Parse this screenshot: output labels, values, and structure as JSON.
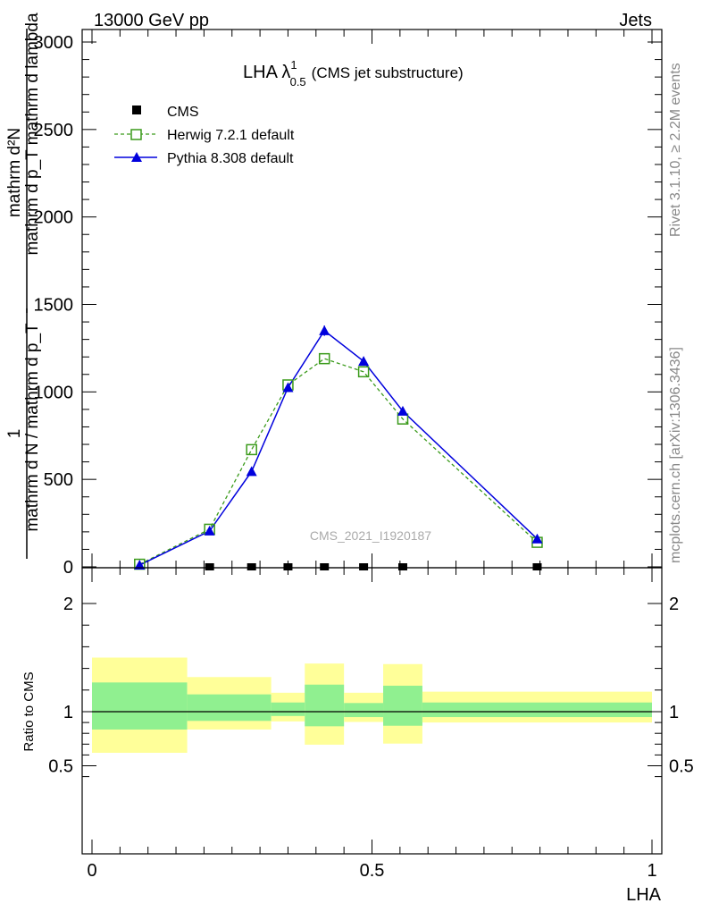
{
  "header": {
    "left": "13000 GeV pp",
    "right": "Jets"
  },
  "side_labels": {
    "rivet": "Rivet 3.1.10, ≥ 2.2M events",
    "mcplots": "mcplots.cern.ch [arXiv:1306.3436]"
  },
  "watermark": "CMS_2021_I1920187",
  "chart_data": [
    {
      "type": "line",
      "title_main": "LHA λ",
      "title_sup": "1",
      "title_sub": "0.5",
      "title_rest": "(CMS jet substructure)",
      "ylabel_top": "mathrm d²N",
      "ylabel_top2": "mathrm d p_T mathrm d lambda",
      "ylabel_bottom": "mathrm d N / mathrm d p_T",
      "ylabel_one": "1",
      "xlim": [
        0,
        1
      ],
      "ylim": [
        0,
        3000
      ],
      "yticks": [
        0,
        500,
        1000,
        1500,
        2000,
        2500,
        3000
      ],
      "ytick_labels": [
        "0",
        "500",
        "1000",
        "1500",
        "2000",
        "2500",
        "3000"
      ],
      "legend_position": "top-left",
      "series": [
        {
          "name": "CMS",
          "color": "#000000",
          "marker": "square-filled",
          "x": [
            0.21,
            0.285,
            0.35,
            0.415,
            0.485,
            0.555,
            0.795
          ],
          "y": [
            0,
            0,
            0,
            0,
            0,
            0,
            0
          ]
        },
        {
          "name": "Herwig 7.2.1 default",
          "color": "#3a9a1a",
          "marker": "square-open",
          "dashed": true,
          "x": [
            0.085,
            0.21,
            0.285,
            0.35,
            0.415,
            0.485,
            0.555,
            0.795
          ],
          "y": [
            15,
            215,
            670,
            1040,
            1190,
            1115,
            845,
            140
          ]
        },
        {
          "name": "Pythia 8.308 default",
          "color": "#0000dd",
          "marker": "triangle-filled",
          "x": [
            0.085,
            0.21,
            0.285,
            0.35,
            0.415,
            0.485,
            0.555,
            0.795
          ],
          "y": [
            10,
            205,
            545,
            1025,
            1350,
            1175,
            890,
            160
          ],
          "err": [
            5,
            10,
            15,
            20,
            30,
            25,
            20,
            10
          ]
        }
      ]
    },
    {
      "type": "area",
      "ylabel": "Ratio to CMS",
      "xlabel": "LHA",
      "xlim": [
        0,
        1
      ],
      "ylim": [
        0.35,
        2.25
      ],
      "yticks": [
        0.5,
        1,
        2
      ],
      "ytick_labels": [
        "0.5",
        "1",
        "2"
      ],
      "xticks": [
        0,
        0.5,
        1
      ],
      "xtick_labels": [
        "0",
        "0.5",
        "1"
      ],
      "colors": {
        "inner": "#90f090",
        "outer": "#ffff99"
      },
      "bins": [
        {
          "x0": 0.0,
          "x1": 0.17,
          "inner": [
            0.835,
            1.27
          ],
          "outer": [
            0.62,
            1.5
          ]
        },
        {
          "x0": 0.17,
          "x1": 0.32,
          "inner": [
            0.915,
            1.16
          ],
          "outer": [
            0.835,
            1.32
          ]
        },
        {
          "x0": 0.32,
          "x1": 0.38,
          "inner": [
            0.96,
            1.085
          ],
          "outer": [
            0.91,
            1.175
          ]
        },
        {
          "x0": 0.38,
          "x1": 0.45,
          "inner": [
            0.865,
            1.25
          ],
          "outer": [
            0.695,
            1.445
          ]
        },
        {
          "x0": 0.45,
          "x1": 0.52,
          "inner": [
            0.95,
            1.08
          ],
          "outer": [
            0.905,
            1.175
          ]
        },
        {
          "x0": 0.52,
          "x1": 0.59,
          "inner": [
            0.87,
            1.24
          ],
          "outer": [
            0.705,
            1.44
          ]
        },
        {
          "x0": 0.59,
          "x1": 1.0,
          "inner": [
            0.95,
            1.085
          ],
          "outer": [
            0.9,
            1.185
          ]
        }
      ]
    }
  ]
}
